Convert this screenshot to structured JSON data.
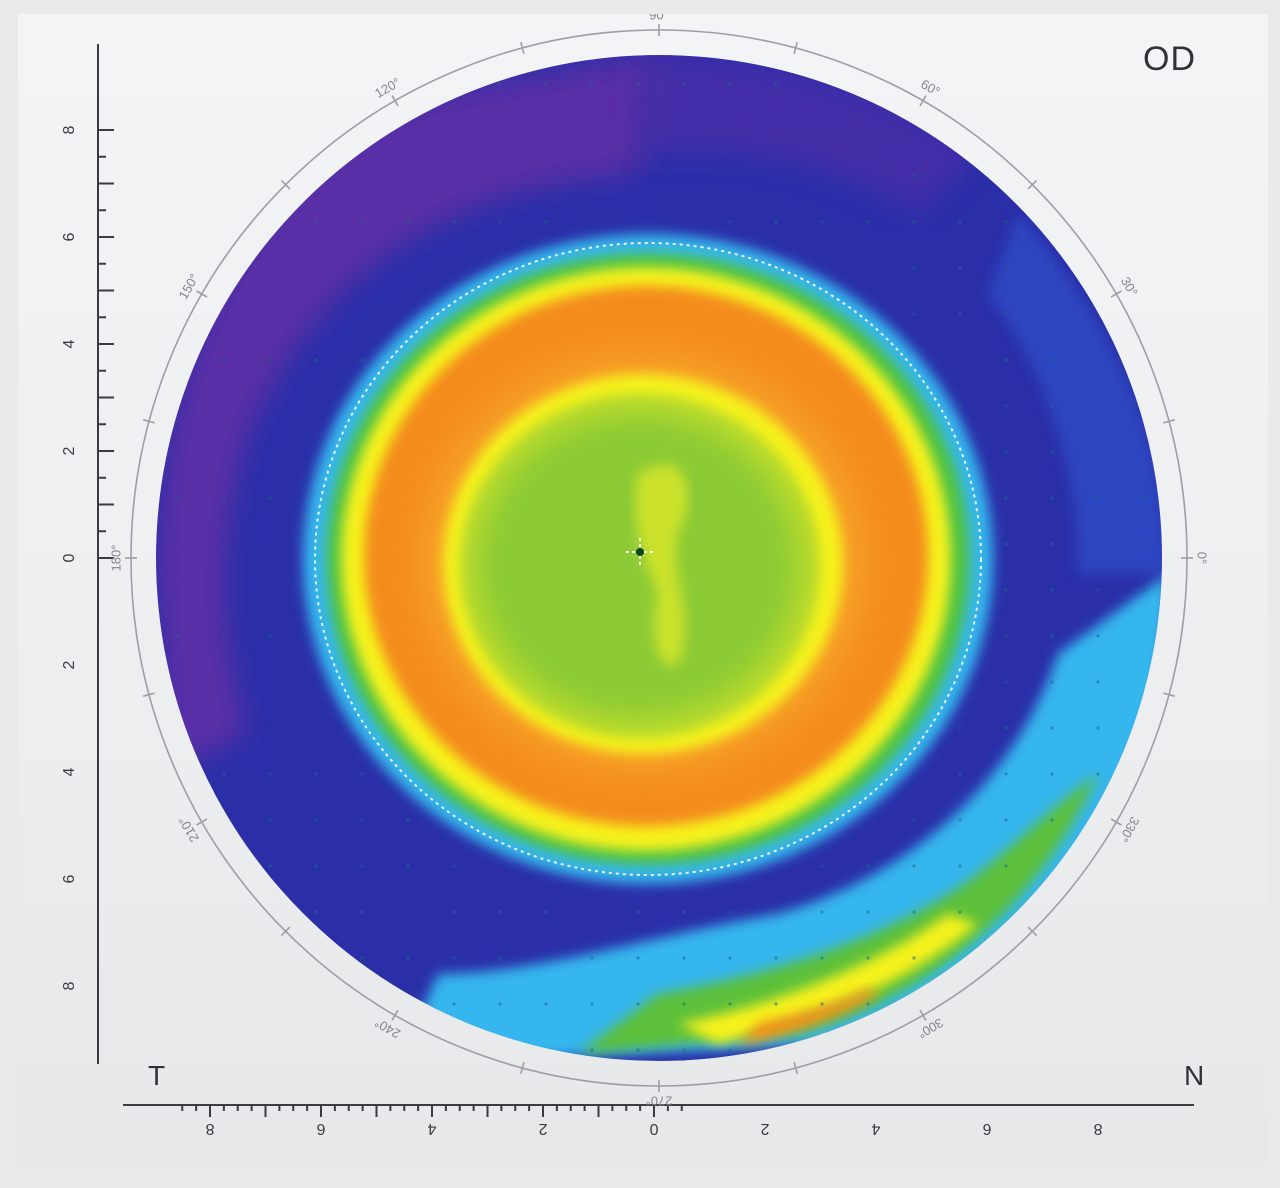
{
  "map": {
    "eye": "OD",
    "temporal_label": "T",
    "nasal_label": "N",
    "y_axis_ticks": [
      "8",
      "6",
      "4",
      "2",
      "0",
      "2",
      "4",
      "6",
      "8"
    ],
    "x_axis_ticks": [
      "8",
      "6",
      "4",
      "2",
      "0",
      "2",
      "4",
      "6",
      "8"
    ],
    "angle_labels": [
      {
        "deg": 90,
        "text": "90°"
      },
      {
        "deg": 60,
        "text": "60°"
      },
      {
        "deg": 30,
        "text": "30°"
      },
      {
        "deg": 0,
        "text": "0°"
      },
      {
        "deg": 330,
        "text": "330°"
      },
      {
        "deg": 300,
        "text": "300°"
      },
      {
        "deg": 270,
        "text": "270°"
      },
      {
        "deg": 240,
        "text": "240°"
      },
      {
        "deg": 210,
        "text": "210°"
      },
      {
        "deg": 180,
        "text": "180°"
      },
      {
        "deg": 150,
        "text": "150°"
      },
      {
        "deg": 120,
        "text": "120°"
      }
    ],
    "palette": {
      "outer_purple": "#5a2ea6",
      "deep_blue": "#2a2fa8",
      "cyan": "#34b6ee",
      "green": "#5cc03a",
      "yellow": "#f6f21e",
      "orange": "#f48c1a",
      "center_green": "#8ccb34"
    }
  }
}
